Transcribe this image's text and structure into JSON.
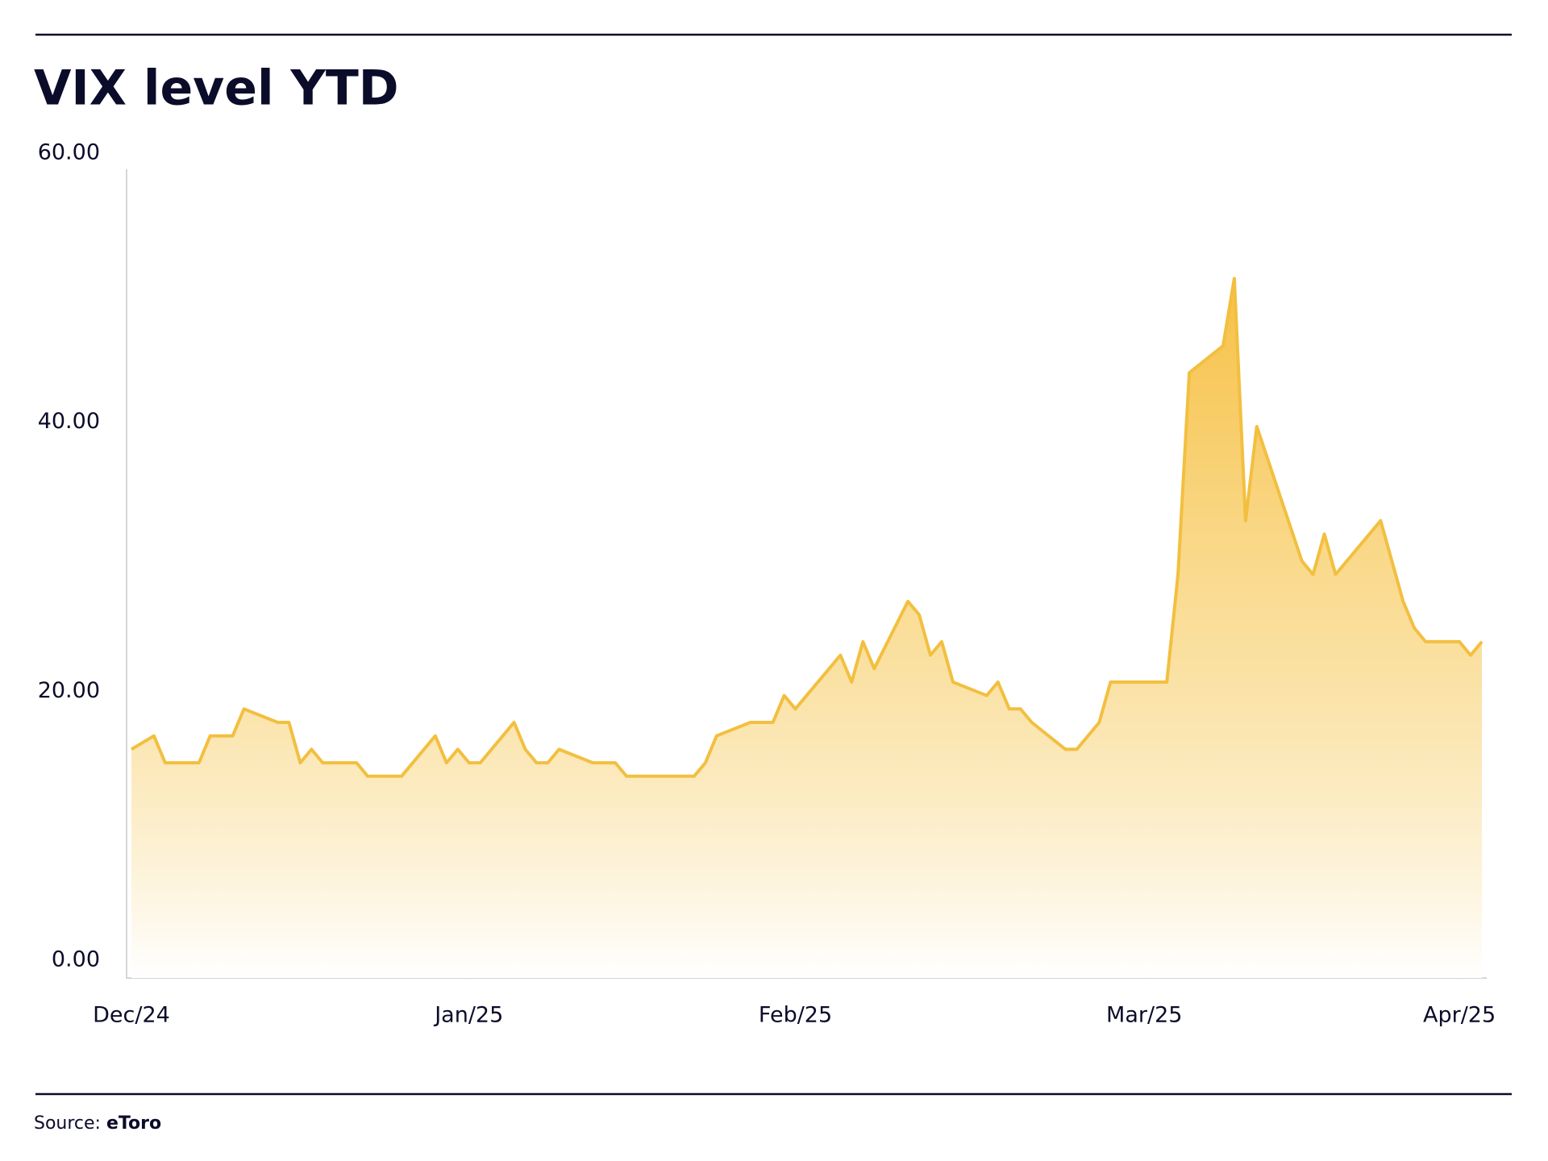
{
  "chart_data": {
    "type": "area",
    "title": "VIX level YTD",
    "source_label": "Source:",
    "source": "eToro",
    "color": "#f2bf3f",
    "x": [
      0,
      2,
      3,
      6,
      7,
      9,
      10,
      13,
      14,
      15,
      16,
      17,
      20,
      21,
      24,
      27,
      28,
      29,
      30,
      31,
      34,
      35,
      36,
      37,
      38,
      41,
      43,
      44,
      50,
      51,
      52,
      55,
      57,
      58,
      59,
      63,
      64,
      65,
      66,
      69,
      70,
      71,
      72,
      73,
      76,
      77,
      78,
      79,
      80,
      83,
      84,
      86,
      87,
      92,
      93,
      94,
      97,
      98,
      99,
      100,
      101,
      104,
      105,
      106,
      107,
      111,
      113,
      114,
      115,
      118,
      119,
      120
    ],
    "values": [
      17,
      18,
      16,
      16,
      18,
      18,
      20,
      19,
      19,
      16,
      17,
      16,
      16,
      15,
      15,
      18,
      16,
      17,
      16,
      16,
      19,
      17,
      16,
      16,
      17,
      16,
      16,
      15,
      15,
      16,
      18,
      19,
      19,
      21,
      20,
      24,
      22,
      25,
      23,
      28,
      27,
      24,
      25,
      22,
      21,
      22,
      20,
      20,
      19,
      17,
      17,
      19,
      22,
      22,
      30,
      45,
      47,
      52,
      34,
      41,
      38.5,
      31,
      30,
      33,
      30,
      34,
      28,
      26,
      25,
      25,
      24,
      25
    ],
    "xlim": [
      0,
      120
    ],
    "xticks": [
      {
        "value": 0,
        "label": "Dec/24"
      },
      {
        "value": 30,
        "label": "Jan/25"
      },
      {
        "value": 59,
        "label": "Feb/25"
      },
      {
        "value": 90,
        "label": "Mar/25"
      },
      {
        "value": 118,
        "label": "Apr/25"
      }
    ],
    "ylim": [
      0,
      60
    ],
    "yticks": [
      {
        "value": 0,
        "label": "0.00"
      },
      {
        "value": 20,
        "label": "20.00"
      },
      {
        "value": 40,
        "label": "40.00"
      },
      {
        "value": 60,
        "label": "60.00"
      }
    ],
    "grid": false
  }
}
